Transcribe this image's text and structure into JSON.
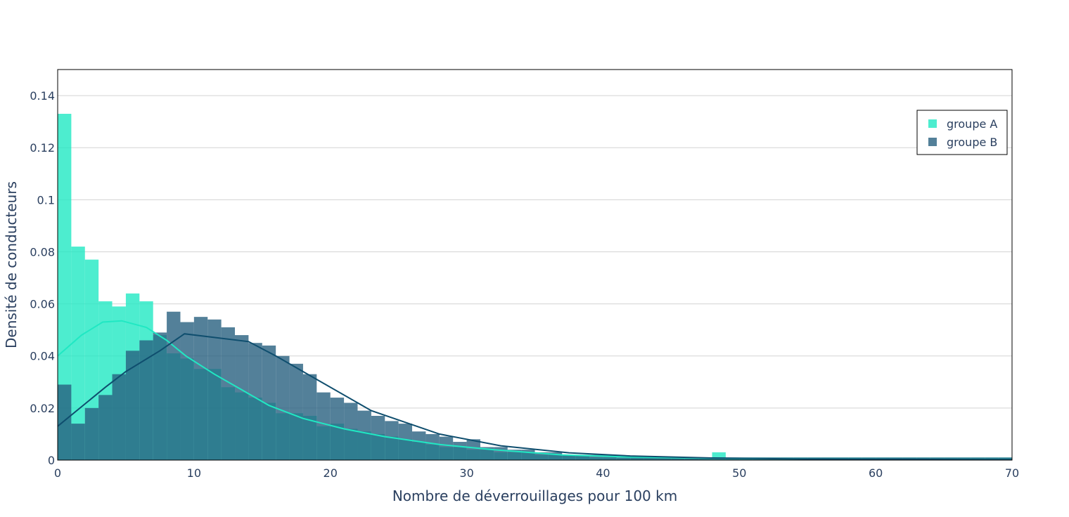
{
  "chart_data": {
    "type": "bar",
    "subtype": "overlaid-histogram-with-density-lines",
    "xlabel": "Nombre de déverrouillages pour 100 km",
    "ylabel": "Densité de conducteurs",
    "xlim": [
      0,
      70
    ],
    "ylim": [
      0,
      0.15
    ],
    "x_ticks": [
      0,
      10,
      20,
      30,
      40,
      50,
      60,
      70
    ],
    "x_tick_labels": [
      "0",
      "10",
      "20",
      "30",
      "40",
      "50",
      "60",
      "70"
    ],
    "y_ticks": [
      0,
      0.02,
      0.04,
      0.06,
      0.08,
      0.1,
      0.12,
      0.14
    ],
    "y_tick_labels": [
      "0",
      "0.02",
      "0.04",
      "0.06",
      "0.08",
      "0.1",
      "0.12",
      "0.14"
    ],
    "grid": true,
    "legend_position": "top-right",
    "bin_width": 1,
    "series": [
      {
        "name": "groupe A",
        "color": "#20e8c3",
        "opacity": 0.8,
        "bin_start": 0,
        "values": [
          0.133,
          0.082,
          0.077,
          0.061,
          0.059,
          0.064,
          0.061,
          0.048,
          0.041,
          0.039,
          0.035,
          0.035,
          0.028,
          0.026,
          0.024,
          0.022,
          0.018,
          0.018,
          0.017,
          0.013,
          0.014,
          0.012,
          0.011,
          0.01,
          0.009,
          0.008,
          0.007,
          0.006,
          0.005,
          0.005,
          0.004,
          0.004,
          0.003,
          0.003,
          0.003,
          0.002,
          0.002,
          0.002,
          0.002,
          0.001,
          0.001,
          0.001,
          0.001,
          0.001,
          0.001,
          0.001,
          0.001,
          0.001,
          0.003,
          0.001,
          0.001,
          0.001,
          0.001,
          0.001,
          0.001,
          0.001,
          0.001,
          0.001,
          0.001,
          0.001,
          0.001,
          0.001,
          0.001,
          0.001,
          0.001,
          0.001,
          0.001,
          0.001,
          0.001,
          0.001
        ]
      },
      {
        "name": "groupe B",
        "color": "#28607f",
        "opacity": 0.8,
        "bin_start": 0,
        "values": [
          0.029,
          0.014,
          0.02,
          0.025,
          0.033,
          0.042,
          0.046,
          0.049,
          0.057,
          0.053,
          0.055,
          0.054,
          0.051,
          0.048,
          0.045,
          0.044,
          0.04,
          0.037,
          0.033,
          0.026,
          0.024,
          0.022,
          0.019,
          0.017,
          0.015,
          0.014,
          0.011,
          0.01,
          0.009,
          0.007,
          0.008,
          0.005,
          0.005,
          0.004,
          0.004,
          0.003,
          0.003,
          0.002,
          0.002,
          0.002,
          0.002,
          0.001,
          0.001,
          0.001,
          0.001,
          0.001,
          0.001,
          0.001,
          0.001,
          0.001,
          0.001,
          0.001,
          0.001,
          0.001,
          0.001,
          0.001,
          0.001,
          0.001,
          0.001,
          0.001,
          0.001,
          0.001,
          0.001,
          0.001,
          0.001,
          0.001,
          0.001,
          0.001,
          0.001,
          0.001
        ]
      }
    ],
    "lines": [
      {
        "series": "groupe A",
        "color": "#20e8c3",
        "points": [
          [
            0,
            0.04
          ],
          [
            1.75,
            0.048
          ],
          [
            3.3,
            0.053
          ],
          [
            4.7,
            0.0535
          ],
          [
            6.5,
            0.051
          ],
          [
            8,
            0.046
          ],
          [
            9.4,
            0.04
          ],
          [
            11.5,
            0.033
          ],
          [
            13.5,
            0.027
          ],
          [
            15.5,
            0.021
          ],
          [
            18,
            0.016
          ],
          [
            21,
            0.012
          ],
          [
            24,
            0.009
          ],
          [
            28,
            0.006
          ],
          [
            32,
            0.004
          ],
          [
            37,
            0.002
          ],
          [
            42,
            0.0012
          ],
          [
            50,
            0.0006
          ],
          [
            60,
            0.0003
          ],
          [
            70,
            0.0002
          ]
        ]
      },
      {
        "series": "groupe B",
        "color": "#0f4e6e",
        "points": [
          [
            0,
            0.013
          ],
          [
            3.5,
            0.028
          ],
          [
            5,
            0.034
          ],
          [
            7.5,
            0.042
          ],
          [
            9.3,
            0.0485
          ],
          [
            14,
            0.0455
          ],
          [
            16,
            0.04
          ],
          [
            19,
            0.031
          ],
          [
            23,
            0.019
          ],
          [
            28,
            0.01
          ],
          [
            32.5,
            0.0055
          ],
          [
            37.5,
            0.0028
          ],
          [
            42,
            0.0016
          ],
          [
            48,
            0.0008
          ],
          [
            55,
            0.0004
          ],
          [
            62,
            0.0003
          ],
          [
            70,
            0.0002
          ]
        ]
      }
    ]
  }
}
